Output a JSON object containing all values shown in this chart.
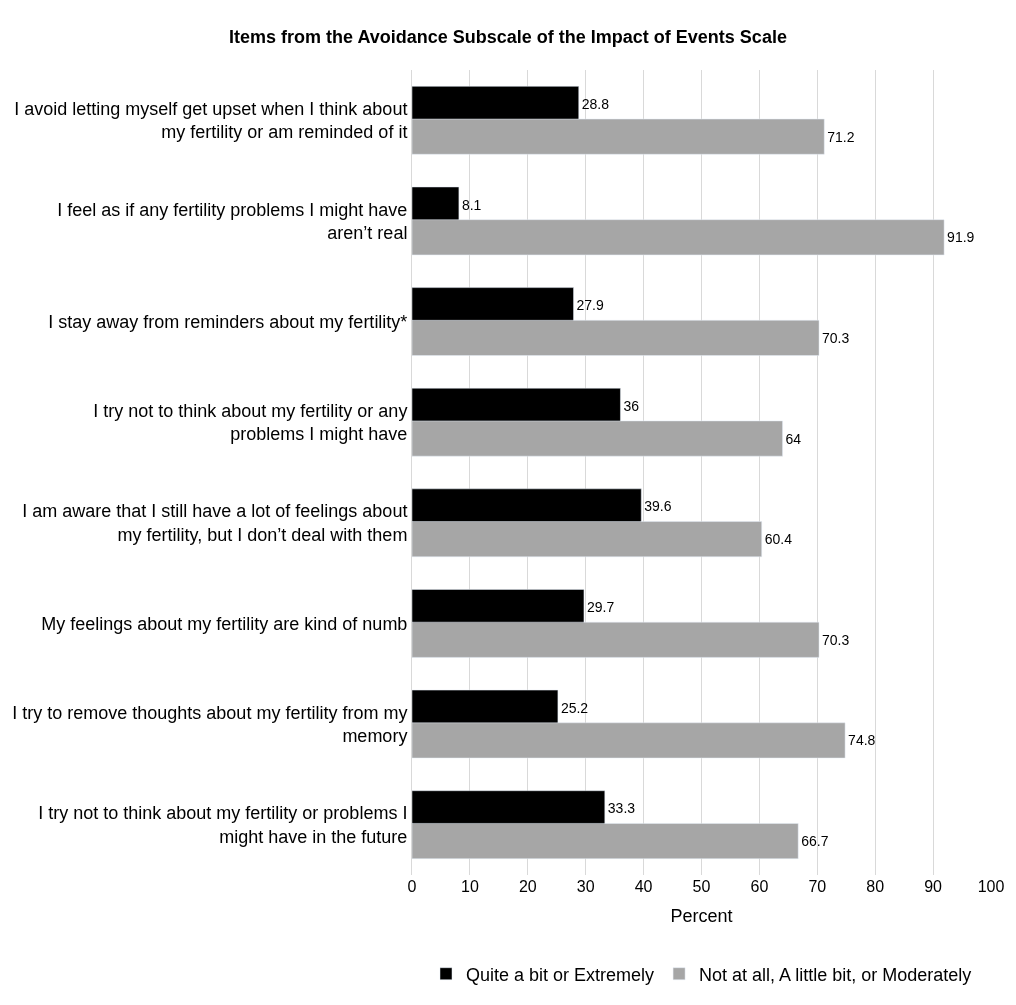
{
  "chart_data": {
    "type": "bar",
    "orientation": "horizontal",
    "title": "Items from the Avoidance Subscale of the Impact of Events Scale",
    "xlabel": "Percent",
    "categories": [
      "I avoid letting myself get upset when I think about my fertility or am reminded of it",
      "I feel as if any fertility problems I might have aren’t real",
      "I stay away from reminders about my fertility*",
      "I try not to think about my fertility or any problems I might have",
      "I am aware that I still have a lot of feelings about my fertility, but I don’t deal with them",
      "My feelings about my fertility are kind of numb",
      "I try to remove thoughts about my fertility from my memory",
      "I try not to think about my fertility or problems I might have in the future"
    ],
    "series": [
      {
        "name": "Quite a bit or Extremely",
        "color": "#000000",
        "values": [
          28.8,
          8.1,
          27.9,
          36,
          39.6,
          29.7,
          25.2,
          33.3
        ]
      },
      {
        "name": "Not at all, A little bit, or Moderately",
        "color": "#a6a6a6",
        "values": [
          71.2,
          91.9,
          70.3,
          64,
          60.4,
          70.3,
          74.8,
          66.7
        ]
      }
    ],
    "xlim": [
      0,
      100
    ],
    "xticks": [
      0,
      10,
      20,
      30,
      40,
      50,
      60,
      70,
      80,
      90,
      100
    ],
    "grid": "x",
    "legend": "bottom",
    "data_labels": true
  }
}
